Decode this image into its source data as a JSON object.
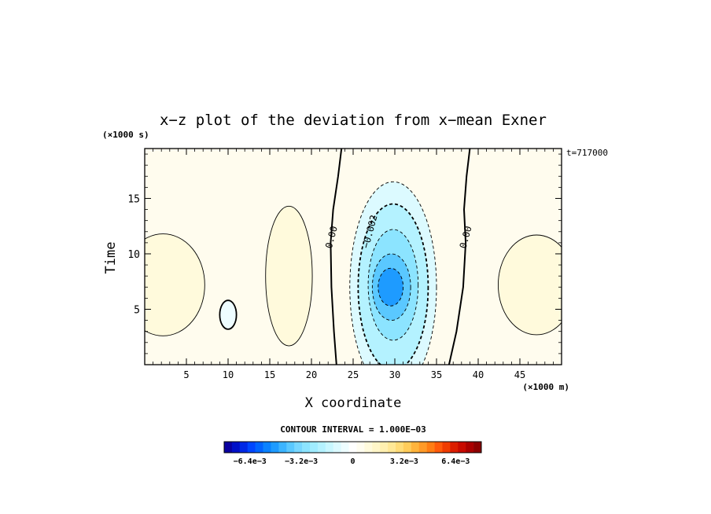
{
  "chart_data": {
    "type": "heatmap",
    "title": "x−z plot of the deviation from x−mean Exner",
    "xlabel": "X coordinate",
    "ylabel": "Time",
    "x_unit": "(×1000 m)",
    "y_unit": "(×1000 s)",
    "timestamp": "t=717000",
    "xlim": [
      0,
      50
    ],
    "ylim": [
      0,
      19.5
    ],
    "x_ticks": [
      5,
      10,
      15,
      20,
      25,
      30,
      35,
      40,
      45
    ],
    "x_tick_labels": [
      "5",
      "10",
      "15",
      "20",
      "25",
      "30",
      "35",
      "40",
      "45"
    ],
    "y_ticks": [
      5,
      10,
      15
    ],
    "y_tick_labels": [
      "5",
      "10",
      "15"
    ],
    "contour_interval_text": "CONTOUR INTERVAL = 1.000E−03",
    "contour_labels": [
      {
        "text": "0.00",
        "x": 22.4,
        "y": 11.5
      },
      {
        "text": "−0.002",
        "x": 27.0,
        "y": 12.0
      },
      {
        "text": "0.00",
        "x": 38.5,
        "y": 11.5
      }
    ],
    "features": [
      {
        "kind": "min",
        "cx": 29.8,
        "cy": 7.0,
        "rx": 5.2,
        "ry": 9.5,
        "value": -0.001
      },
      {
        "kind": "min",
        "cx": 29.8,
        "cy": 7.0,
        "rx": 4.2,
        "ry": 7.5,
        "value": -0.002
      },
      {
        "kind": "min",
        "cx": 29.8,
        "cy": 7.2,
        "rx": 3.0,
        "ry": 5.0,
        "value": -0.003
      },
      {
        "kind": "min",
        "cx": 29.6,
        "cy": 7.0,
        "rx": 2.3,
        "ry": 3.0,
        "value": -0.004
      },
      {
        "kind": "min",
        "cx": 29.5,
        "cy": 7.0,
        "rx": 1.5,
        "ry": 1.7,
        "value": -0.005
      },
      {
        "kind": "min",
        "cx": 10.0,
        "cy": 4.5,
        "rx": 1.0,
        "ry": 1.3,
        "value": -0.0003
      },
      {
        "kind": "max",
        "cx": 17.3,
        "cy": 8.0,
        "rx": 2.8,
        "ry": 6.3,
        "value": 0.0008
      },
      {
        "kind": "max",
        "cx": 2.2,
        "cy": 7.2,
        "rx": 5.0,
        "ry": 4.6,
        "value": 0.001
      },
      {
        "kind": "max",
        "cx": 47.0,
        "cy": 7.2,
        "rx": 4.6,
        "ry": 4.5,
        "value": 0.001
      }
    ],
    "colorbar": {
      "min": -0.008,
      "max": 0.008,
      "levels": 33,
      "tick_values": [
        -0.0064,
        -0.0032,
        0,
        0.0032,
        0.0064
      ],
      "tick_labels": [
        "−6.4e−3",
        "−3.2e−3",
        "0",
        "3.2e−3",
        "6.4e−3"
      ],
      "colors": [
        "#0a00a0",
        "#0010c8",
        "#0028e6",
        "#0046ff",
        "#0064ff",
        "#0a82ff",
        "#1e9bff",
        "#3cb4ff",
        "#5ac8ff",
        "#78d7ff",
        "#8ce4ff",
        "#a0ecff",
        "#b4f2ff",
        "#c8f7ff",
        "#dcfaff",
        "#eefdff",
        "#ffffff",
        "#fffdf0",
        "#fffadc",
        "#fff6c8",
        "#fff0b0",
        "#ffe896",
        "#ffdc78",
        "#ffcc5a",
        "#ffb43c",
        "#ff9a28",
        "#ff7d14",
        "#ff5a0a",
        "#f03c00",
        "#dc1e00",
        "#c80a00",
        "#aa0000",
        "#8c0000"
      ]
    },
    "grid": false
  }
}
